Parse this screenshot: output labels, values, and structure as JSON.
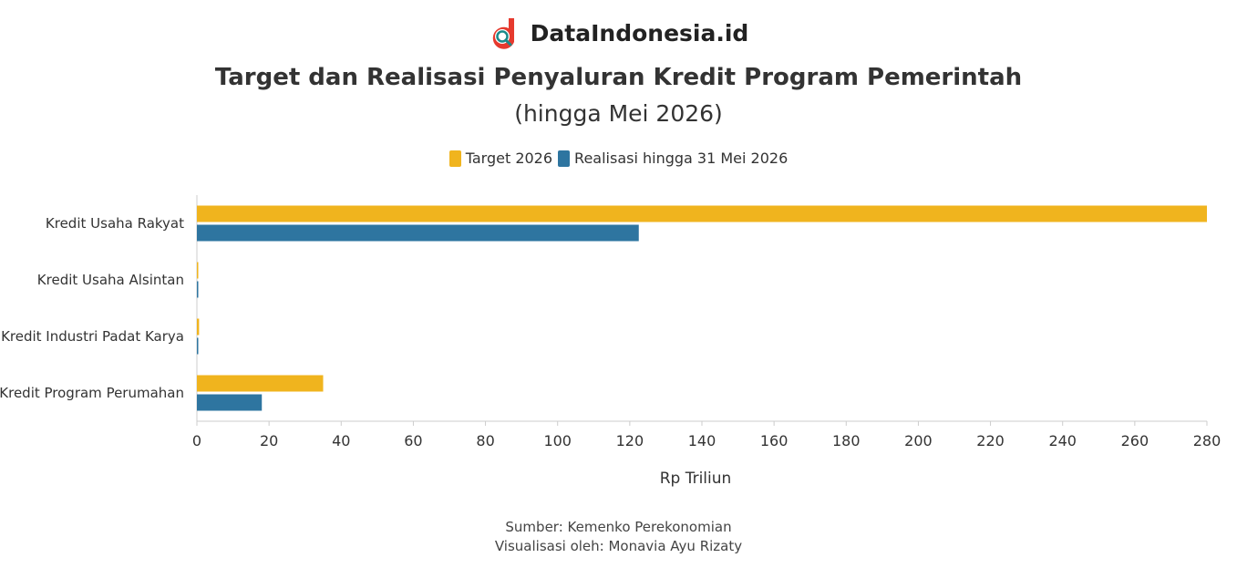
{
  "brand": {
    "name": "DataIndonesia.id",
    "logo_icon": "dataindonesia-logo-icon",
    "logo_color": "#e63a2e"
  },
  "footer": {
    "source": "Sumber: Kemenko Perekonomian",
    "credit": "Visualisasi oleh: Monavia Ayu Rizaty"
  },
  "chart_data": {
    "type": "bar",
    "orientation": "horizontal",
    "title": "Target dan Realisasi Penyaluran Kredit Program Pemerintah",
    "subtitle": "(hingga Mei 2026)",
    "categories": [
      "Kredit Usaha Rakyat",
      "Kredit Usaha Alsintan",
      "Kredit Industri Padat Karya",
      "Kredit Program Perumahan"
    ],
    "series": [
      {
        "name": "Target 2026",
        "color": "#f0b41e",
        "values": [
          280,
          0.3,
          0.6,
          35
        ]
      },
      {
        "name": "Realisasi hingga 31 Mei 2026",
        "color": "#2e75a0",
        "values": [
          122.5,
          0.05,
          0.1,
          18
        ]
      }
    ],
    "xlabel": "Rp Triliun",
    "ylabel": "",
    "xlim": [
      0,
      280
    ],
    "xticks": [
      "0",
      "20",
      "40",
      "60",
      "80",
      "100",
      "120",
      "140",
      "160",
      "180",
      "200",
      "220",
      "240",
      "260",
      "280"
    ],
    "grid": false,
    "legend_position": "top-center"
  }
}
